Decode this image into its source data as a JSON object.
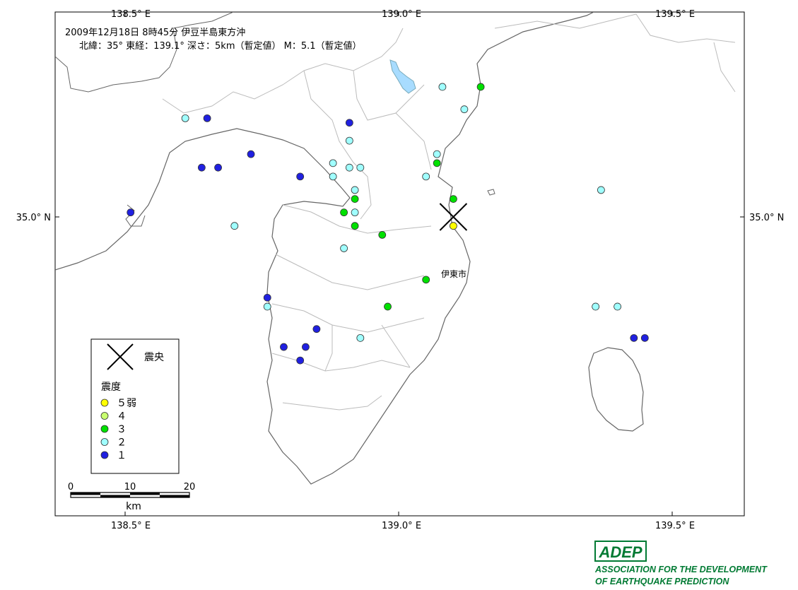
{
  "title": {
    "line1": "2009年12月18日 8時45分  伊豆半島東方沖",
    "line2": "北緯：35°  東経：139.1°  深さ：5km（暫定値）  M：5.1（暫定値）"
  },
  "axes": {
    "top": [
      "138.5° E",
      "139.0° E",
      "139.5° E"
    ],
    "bottom": [
      "138.5° E",
      "139.0° E",
      "139.5° E"
    ],
    "left": [
      "35.0° N"
    ],
    "right": [
      "35.0° N"
    ]
  },
  "city_label": "伊東市",
  "legend": {
    "epicenter": "震央",
    "title": "震度",
    "items": [
      {
        "label": "５弱",
        "color": "#ffff00"
      },
      {
        "label": "４",
        "color": "#c8ff70"
      },
      {
        "label": "３",
        "color": "#00e000"
      },
      {
        "label": "２",
        "color": "#a0ffff"
      },
      {
        "label": "１",
        "color": "#2020e0"
      }
    ]
  },
  "scale": {
    "ticks": [
      "0",
      "10",
      "20"
    ],
    "unit": "km"
  },
  "logo": {
    "mark": "ADEP",
    "line1": "ASSOCIATION FOR THE DEVELOPMENT",
    "line2": "OF EARTHQUAKE PREDICTION"
  },
  "colors": {
    "i5l": "#ffff00",
    "i4": "#c8ff70",
    "i3": "#00e000",
    "i2": "#a0ffff",
    "i1": "#2020e0",
    "lake": "#a8dcff",
    "logo": "#007a33"
  },
  "map_data": {
    "epicenter": {
      "lat": 35.0,
      "lon": 139.1
    },
    "stations": [
      {
        "lon": 139.08,
        "lat": 35.29,
        "i": "2"
      },
      {
        "lon": 139.15,
        "lat": 35.29,
        "i": "3"
      },
      {
        "lon": 138.61,
        "lat": 35.22,
        "i": "2"
      },
      {
        "lon": 138.65,
        "lat": 35.22,
        "i": "1"
      },
      {
        "lon": 139.12,
        "lat": 35.24,
        "i": "2"
      },
      {
        "lon": 138.91,
        "lat": 35.21,
        "i": "1"
      },
      {
        "lon": 138.91,
        "lat": 35.17,
        "i": "2"
      },
      {
        "lon": 138.73,
        "lat": 35.14,
        "i": "1"
      },
      {
        "lon": 139.07,
        "lat": 35.14,
        "i": "2"
      },
      {
        "lon": 139.07,
        "lat": 35.12,
        "i": "3"
      },
      {
        "lon": 138.88,
        "lat": 35.12,
        "i": "2"
      },
      {
        "lon": 138.91,
        "lat": 35.11,
        "i": "2"
      },
      {
        "lon": 138.93,
        "lat": 35.11,
        "i": "2"
      },
      {
        "lon": 138.64,
        "lat": 35.11,
        "i": "1"
      },
      {
        "lon": 138.67,
        "lat": 35.11,
        "i": "1"
      },
      {
        "lon": 138.82,
        "lat": 35.09,
        "i": "1"
      },
      {
        "lon": 138.88,
        "lat": 35.09,
        "i": "2"
      },
      {
        "lon": 139.05,
        "lat": 35.09,
        "i": "2"
      },
      {
        "lon": 139.37,
        "lat": 35.06,
        "i": "2"
      },
      {
        "lon": 138.92,
        "lat": 35.06,
        "i": "2"
      },
      {
        "lon": 139.1,
        "lat": 35.04,
        "i": "3"
      },
      {
        "lon": 138.92,
        "lat": 35.04,
        "i": "3"
      },
      {
        "lon": 138.51,
        "lat": 35.01,
        "i": "1"
      },
      {
        "lon": 138.9,
        "lat": 35.01,
        "i": "3"
      },
      {
        "lon": 138.92,
        "lat": 35.01,
        "i": "2"
      },
      {
        "lon": 138.7,
        "lat": 34.98,
        "i": "2"
      },
      {
        "lon": 138.92,
        "lat": 34.98,
        "i": "3"
      },
      {
        "lon": 139.1,
        "lat": 34.98,
        "i": "5l"
      },
      {
        "lon": 138.97,
        "lat": 34.96,
        "i": "3"
      },
      {
        "lon": 138.9,
        "lat": 34.93,
        "i": "2"
      },
      {
        "lon": 139.05,
        "lat": 34.86,
        "i": "3"
      },
      {
        "lon": 138.76,
        "lat": 34.82,
        "i": "1"
      },
      {
        "lon": 139.4,
        "lat": 34.8,
        "i": "2"
      },
      {
        "lon": 138.76,
        "lat": 34.8,
        "i": "2"
      },
      {
        "lon": 138.98,
        "lat": 34.8,
        "i": "3"
      },
      {
        "lon": 139.36,
        "lat": 34.8,
        "i": "2"
      },
      {
        "lon": 138.85,
        "lat": 34.75,
        "i": "1"
      },
      {
        "lon": 138.93,
        "lat": 34.73,
        "i": "2"
      },
      {
        "lon": 139.43,
        "lat": 34.73,
        "i": "1"
      },
      {
        "lon": 139.45,
        "lat": 34.73,
        "i": "1"
      },
      {
        "lon": 138.79,
        "lat": 34.71,
        "i": "1"
      },
      {
        "lon": 138.83,
        "lat": 34.71,
        "i": "1"
      },
      {
        "lon": 138.82,
        "lat": 34.68,
        "i": "1"
      }
    ]
  }
}
